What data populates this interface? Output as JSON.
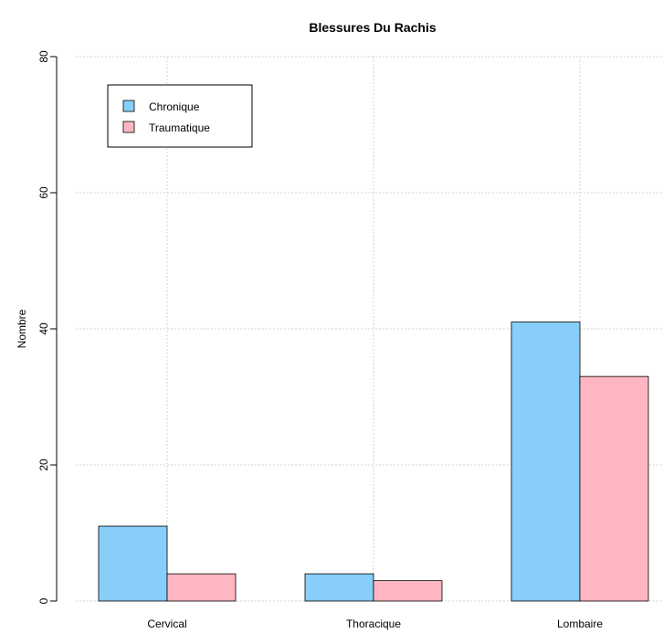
{
  "chart_data": {
    "type": "bar",
    "title": "Blessures Du Rachis",
    "xlabel": "",
    "ylabel": "Nombre",
    "categories": [
      "Cervical",
      "Thoracique",
      "Lombaire"
    ],
    "series": [
      {
        "name": "Chronique",
        "values": [
          11,
          4,
          41
        ],
        "color": "#87CEFA"
      },
      {
        "name": "Traumatique",
        "values": [
          4,
          3,
          33
        ],
        "color": "#FFB6C1"
      }
    ],
    "ylim": [
      0,
      80
    ],
    "yticks": [
      "0",
      "20",
      "40",
      "60",
      "80"
    ],
    "grid": true,
    "legend_position": "top-left"
  }
}
